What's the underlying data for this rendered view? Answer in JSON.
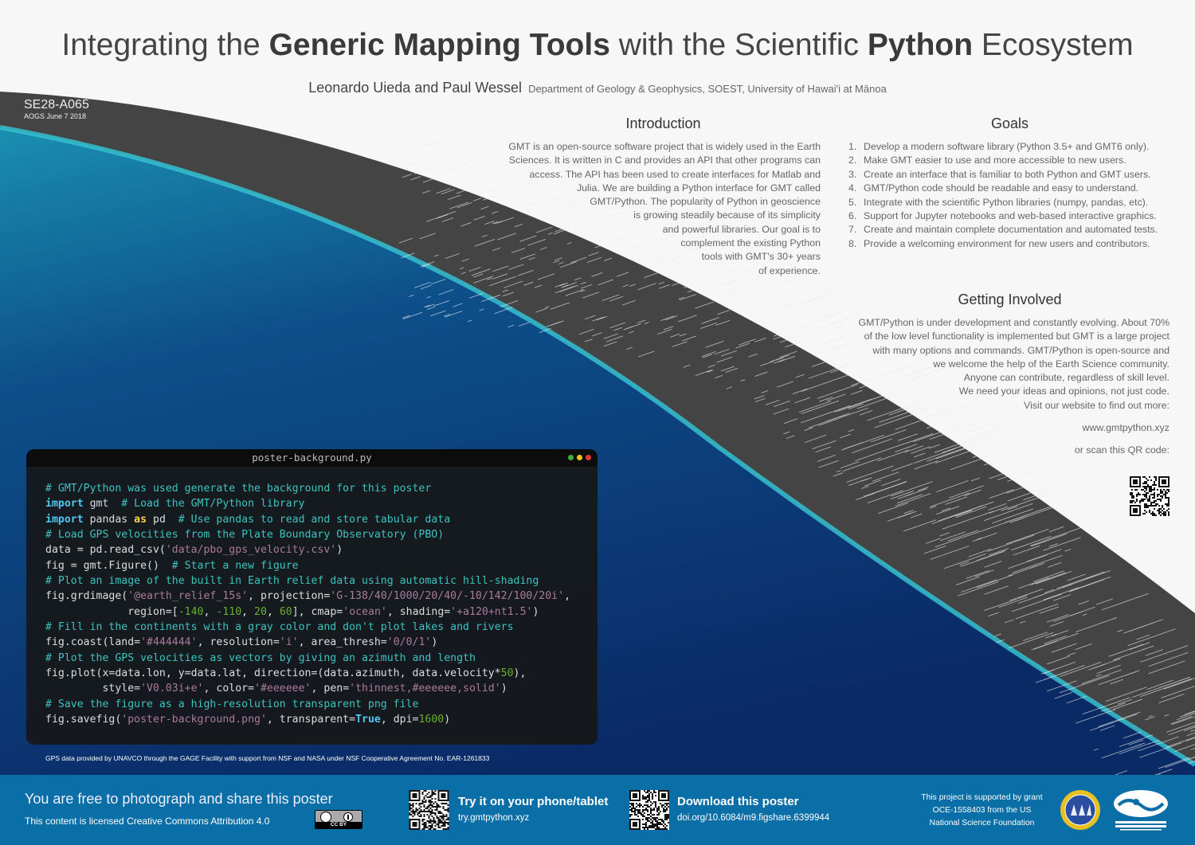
{
  "title": {
    "pre": "Integrating the ",
    "bold1": "Generic Mapping Tools",
    "mid": " with the Scientific ",
    "bold2": "Python",
    "post": " Ecosystem"
  },
  "authors": {
    "names": "Leonardo Uieda and Paul Wessel",
    "department": "Department of Geology & Geophysics, SOEST, University of Hawai'i at Mānoa"
  },
  "session": {
    "code": "SE28-A065",
    "date": "AOGS June 7 2018"
  },
  "introduction": {
    "heading": "Introduction",
    "lines": [
      "GMT is an open-source software project that is widely used in the Earth",
      "Sciences. It is written in C and provides an API that other programs can",
      "access. The API has been used to create interfaces for Matlab and",
      "Julia. We are building a Python interface for GMT called",
      "GMT/Python. The popularity of Python in geoscience",
      "is growing steadily because of its simplicity",
      "and powerful libraries. Our goal is to",
      "complement the existing Python",
      "tools with GMT's 30+ years",
      "of experience."
    ]
  },
  "goals": {
    "heading": "Goals",
    "items": [
      {
        "n": "1.",
        "text": "Develop a modern software library (Python 3.5+ and GMT6 only)."
      },
      {
        "n": "2.",
        "text": "Make GMT easier to use and more accessible to new users."
      },
      {
        "n": "3.",
        "text": "Create an interface that is familiar to both Python and GMT users."
      },
      {
        "n": "4.",
        "text": "GMT/Python code should be readable and easy to understand."
      },
      {
        "n": "5.",
        "text": "Integrate with the scientific Python libraries (numpy, pandas, etc)."
      },
      {
        "n": "6.",
        "text": "Support for Jupyter notebooks and web-based interactive graphics."
      },
      {
        "n": "7.",
        "text": "Create and maintain complete documentation and automated tests."
      },
      {
        "n": "8.",
        "text": "Provide a welcoming environment for new users and contributors."
      }
    ]
  },
  "getting_involved": {
    "heading": "Getting Involved",
    "lines": [
      "GMT/Python is under development and constantly evolving. About 70%",
      "of the low level functionality is implemented but GMT is a large project",
      "with many options and commands. GMT/Python is open-source and",
      "we welcome the help of the Earth Science community.",
      "Anyone can contribute, regardless of skill level.",
      "We need your ideas and opinions, not just code.",
      "Visit our website to find out more:"
    ],
    "website": "www.gmtpython.xyz",
    "scan": "or scan this QR code:"
  },
  "code_window": {
    "filename": "poster-background.py",
    "dot_colors": [
      "#3bb33b",
      "#f0c419",
      "#e53935"
    ],
    "lines": [
      [
        [
          "com",
          "# GMT/Python was used generate the background for this poster"
        ]
      ],
      [
        [
          "kw",
          "import"
        ],
        [
          "txt",
          " gmt  "
        ],
        [
          "com",
          "# Load the GMT/Python library"
        ]
      ],
      [
        [
          "kw",
          "import"
        ],
        [
          "txt",
          " pandas "
        ],
        [
          "kw2",
          "as"
        ],
        [
          "txt",
          " pd  "
        ],
        [
          "com",
          "# Use pandas to read and store tabular data"
        ]
      ],
      [
        [
          "com",
          "# Load GPS velocities from the Plate Boundary Observatory (PBO)"
        ]
      ],
      [
        [
          "txt",
          "data = pd.read_csv("
        ],
        [
          "str",
          "'data/pbo_gps_velocity.csv'"
        ],
        [
          "txt",
          ")"
        ]
      ],
      [
        [
          "txt",
          "fig = gmt.Figure()  "
        ],
        [
          "com",
          "# Start a new figure"
        ]
      ],
      [
        [
          "com",
          "# Plot an image of the built in Earth relief data using automatic hill-shading"
        ]
      ],
      [
        [
          "txt",
          "fig.grdimage("
        ],
        [
          "str",
          "'@earth_relief_15s'"
        ],
        [
          "txt",
          ", projection="
        ],
        [
          "str",
          "'G-138/40/1000/20/40/-10/142/100/20i'"
        ],
        [
          "txt",
          ","
        ]
      ],
      [
        [
          "txt",
          "             region=["
        ],
        [
          "num",
          "-140"
        ],
        [
          "txt",
          ", "
        ],
        [
          "num",
          "-110"
        ],
        [
          "txt",
          ", "
        ],
        [
          "num",
          "20"
        ],
        [
          "txt",
          ", "
        ],
        [
          "num",
          "60"
        ],
        [
          "txt",
          "], cmap="
        ],
        [
          "str",
          "'ocean'"
        ],
        [
          "txt",
          ", shading="
        ],
        [
          "str",
          "'+a120+nt1.5'"
        ],
        [
          "txt",
          ")"
        ]
      ],
      [
        [
          "com",
          "# Fill in the continents with a gray color and don't plot lakes and rivers"
        ]
      ],
      [
        [
          "txt",
          "fig.coast(land="
        ],
        [
          "str",
          "'#444444'"
        ],
        [
          "txt",
          ", resolution="
        ],
        [
          "str",
          "'i'"
        ],
        [
          "txt",
          ", area_thresh="
        ],
        [
          "str",
          "'0/0/1'"
        ],
        [
          "txt",
          ")"
        ]
      ],
      [
        [
          "com",
          "# Plot the GPS velocities as vectors by giving an azimuth and length"
        ]
      ],
      [
        [
          "txt",
          "fig.plot(x=data.lon, y=data.lat, direction=(data.azimuth, data.velocity*"
        ],
        [
          "num",
          "50"
        ],
        [
          "txt",
          "),"
        ]
      ],
      [
        [
          "txt",
          "         style="
        ],
        [
          "str",
          "'V0.03i+e'"
        ],
        [
          "txt",
          ", color="
        ],
        [
          "str",
          "'#eeeeee'"
        ],
        [
          "txt",
          ", pen="
        ],
        [
          "str",
          "'thinnest,#eeeeee,solid'"
        ],
        [
          "txt",
          ")"
        ]
      ],
      [
        [
          "com",
          "# Save the figure as a high-resolution transparent png file"
        ]
      ],
      [
        [
          "txt",
          "fig.savefig("
        ],
        [
          "str",
          "'poster-background.png'"
        ],
        [
          "txt",
          ", transparent="
        ],
        [
          "bool",
          "True"
        ],
        [
          "txt",
          ", dpi="
        ],
        [
          "num",
          "1600"
        ],
        [
          "txt",
          ")"
        ]
      ]
    ]
  },
  "credit": "GPS data provided by UNAVCO through the GAGE Facility with support from NSF and NASA under NSF Cooperative Agreement No. EAR-1261833",
  "footer": {
    "share": "You are free to photograph and share this poster",
    "license": "This content is licensed Creative Commons Attribution 4.0",
    "cc_badge": "CC BY",
    "try_title": "Try it on your phone/tablet",
    "try_url": "try.gmtpython.xyz",
    "download_title": "Download this poster",
    "download_url": "doi.org/10.6084/m9.figshare.6399944",
    "grant_lines": [
      "This project is supported by grant",
      "OCE-1558403 from the US",
      "National Science Foundation"
    ],
    "nsf_logo": "NSF",
    "soest_logo": "SCHOOL OF OCEAN AND EARTH SCIENCE AND TECHNOLOGY"
  },
  "colors": {
    "footer": "#0a6ea7",
    "land": "#444444",
    "ocean": "#0b3a73",
    "coast": "#2fb6c8"
  }
}
